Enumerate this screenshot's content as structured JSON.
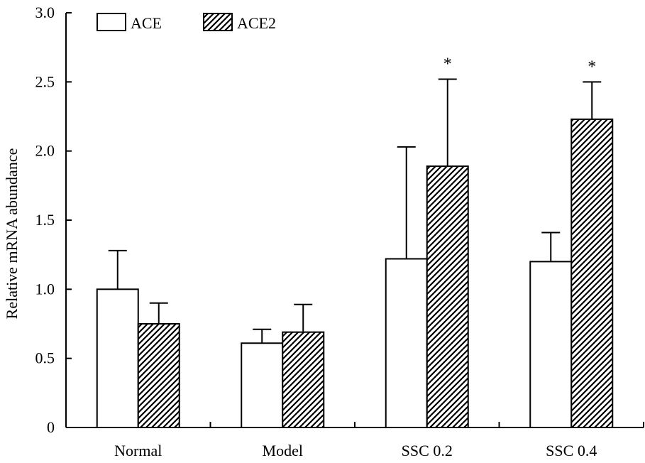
{
  "chart_data": {
    "type": "bar",
    "title": "",
    "xlabel": "",
    "ylabel": "Relative mRNA abundance",
    "ylim": [
      0,
      3.0
    ],
    "yticks": [
      0,
      0.5,
      1.0,
      1.5,
      2.0,
      2.5,
      3.0
    ],
    "ytick_labels": [
      "0",
      "0.5",
      "1.0",
      "1.5",
      "2.0",
      "2.5",
      "3.0"
    ],
    "categories": [
      "Normal",
      "Model",
      "SSC 0.2",
      "SSC 0.4"
    ],
    "series": [
      {
        "name": "ACE",
        "fill": "open",
        "values": [
          1.0,
          0.61,
          1.22,
          1.2
        ],
        "errors": [
          0.28,
          0.1,
          0.81,
          0.21
        ],
        "annotations": [
          "",
          "",
          "",
          ""
        ]
      },
      {
        "name": "ACE2",
        "fill": "hatched",
        "values": [
          0.75,
          0.69,
          1.89,
          2.23
        ],
        "errors": [
          0.15,
          0.2,
          0.63,
          0.27
        ],
        "annotations": [
          "",
          "",
          "*",
          "*"
        ]
      }
    ],
    "legend": {
      "position": "top-left",
      "entries": [
        "ACE",
        "ACE2"
      ]
    },
    "grid": false,
    "colors": {
      "bar_edge": "#000000",
      "open_fill": "#ffffff",
      "hatch": "#000000"
    }
  }
}
